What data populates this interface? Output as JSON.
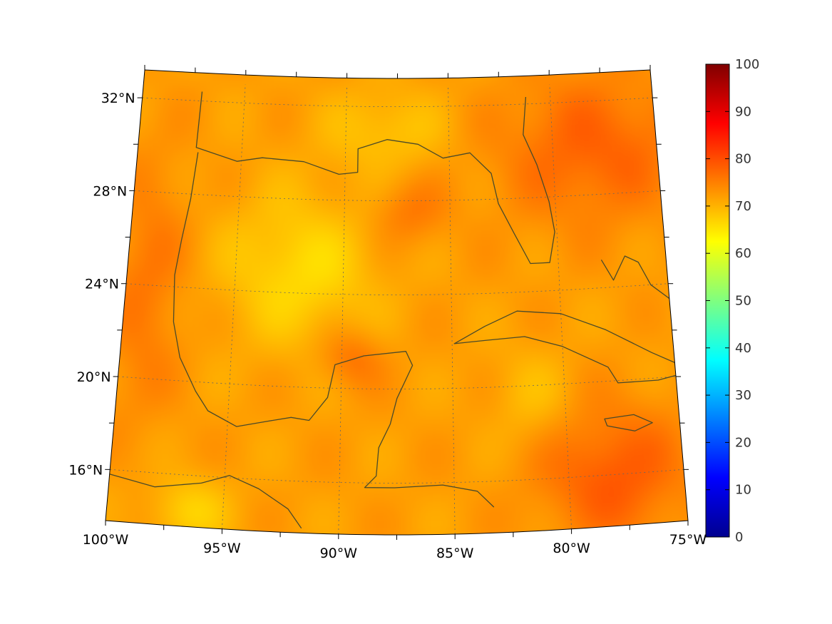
{
  "map": {
    "projection": "lambert-conformal",
    "lon_range": [
      -100,
      -75
    ],
    "lat_range": [
      13.8,
      33.2
    ],
    "lon_ticks": [
      {
        "value": -100,
        "label": "100°W"
      },
      {
        "value": -95,
        "label": "95°W"
      },
      {
        "value": -90,
        "label": "90°W"
      },
      {
        "value": -85,
        "label": "85°W"
      },
      {
        "value": -80,
        "label": "80°W"
      },
      {
        "value": -75,
        "label": "75°W"
      }
    ],
    "lat_ticks": [
      {
        "value": 16,
        "label": "16°N"
      },
      {
        "value": 20,
        "label": "20°N"
      },
      {
        "value": 24,
        "label": "24°N"
      },
      {
        "value": 28,
        "label": "28°N"
      },
      {
        "value": 32,
        "label": "32°N"
      }
    ],
    "field_range": [
      65,
      85
    ],
    "coastline_color": "#4a4a2a",
    "gridline_color": "#666666"
  },
  "colorbar": {
    "colormap": "jet",
    "range": [
      0,
      100
    ],
    "ticks": [
      "0",
      "10",
      "20",
      "30",
      "40",
      "50",
      "60",
      "70",
      "80",
      "90",
      "100"
    ]
  }
}
